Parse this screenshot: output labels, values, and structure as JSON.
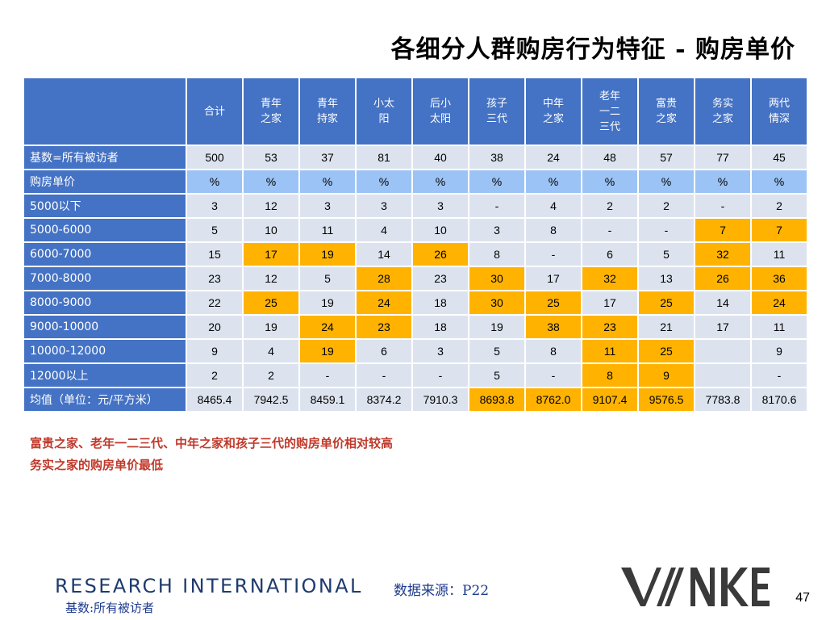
{
  "title": "各细分人群购房行为特征 - 购房单价",
  "table": {
    "headers": [
      "合计",
      "青年\n之家",
      "青年\n持家",
      "小太\n阳",
      "后小\n太阳",
      "孩子\n三代",
      "中年\n之家",
      "老年\n一二\n三代",
      "富贵\n之家",
      "务实\n之家",
      "两代\n情深"
    ],
    "rows": [
      {
        "label": "基数=所有被访者",
        "values": [
          "500",
          "53",
          "37",
          "81",
          "40",
          "38",
          "24",
          "48",
          "57",
          "77",
          "45"
        ],
        "highlight": [
          false,
          false,
          false,
          false,
          false,
          false,
          false,
          false,
          false,
          false,
          false
        ]
      },
      {
        "label": "购房单价",
        "values": [
          "%",
          "%",
          "%",
          "%",
          "%",
          "%",
          "%",
          "%",
          "%",
          "%",
          "%"
        ],
        "highlight": [
          false,
          false,
          false,
          false,
          false,
          false,
          false,
          false,
          false,
          false,
          false
        ],
        "pct": true
      },
      {
        "label": "5000以下",
        "values": [
          "3",
          "12",
          "3",
          "3",
          "3",
          "-",
          "4",
          "2",
          "2",
          "-",
          "2"
        ],
        "highlight": [
          false,
          false,
          false,
          false,
          false,
          false,
          false,
          false,
          false,
          false,
          false
        ]
      },
      {
        "label": "5000-6000",
        "values": [
          "5",
          "10",
          "11",
          "4",
          "10",
          "3",
          "8",
          "-",
          "-",
          "7",
          "7"
        ],
        "highlight": [
          false,
          false,
          false,
          false,
          false,
          false,
          false,
          false,
          false,
          true,
          true
        ]
      },
      {
        "label": "6000-7000",
        "values": [
          "15",
          "17",
          "19",
          "14",
          "26",
          "8",
          "-",
          "6",
          "5",
          "32",
          "11"
        ],
        "highlight": [
          false,
          true,
          true,
          false,
          true,
          false,
          false,
          false,
          false,
          true,
          false
        ]
      },
      {
        "label": "7000-8000",
        "values": [
          "23",
          "12",
          "5",
          "28",
          "23",
          "30",
          "17",
          "32",
          "13",
          "26",
          "36"
        ],
        "highlight": [
          false,
          false,
          false,
          true,
          false,
          true,
          false,
          true,
          false,
          true,
          true
        ]
      },
      {
        "label": "8000-9000",
        "values": [
          "22",
          "25",
          "19",
          "24",
          "18",
          "30",
          "25",
          "17",
          "25",
          "14",
          "24"
        ],
        "highlight": [
          false,
          true,
          false,
          true,
          false,
          true,
          true,
          false,
          true,
          false,
          true
        ]
      },
      {
        "label": "9000-10000",
        "values": [
          "20",
          "19",
          "24",
          "23",
          "18",
          "19",
          "38",
          "23",
          "21",
          "17",
          "11"
        ],
        "highlight": [
          false,
          false,
          true,
          true,
          false,
          false,
          true,
          true,
          false,
          false,
          false
        ]
      },
      {
        "label": "10000-12000",
        "values": [
          "9",
          "4",
          "19",
          "6",
          "3",
          "5",
          "8",
          "11",
          "25",
          "",
          "9"
        ],
        "highlight": [
          false,
          false,
          true,
          false,
          false,
          false,
          false,
          true,
          true,
          false,
          false
        ]
      },
      {
        "label": "12000以上",
        "values": [
          "2",
          "2",
          "-",
          "-",
          "-",
          "5",
          "-",
          "8",
          "9",
          "",
          "-"
        ],
        "highlight": [
          false,
          false,
          false,
          false,
          false,
          false,
          false,
          true,
          true,
          false,
          false
        ]
      },
      {
        "label": "均值（单位：元/平方米）",
        "values": [
          "8465.4",
          "7942.5",
          "8459.1",
          "8374.2",
          "7910.3",
          "8693.8",
          "8762.0",
          "9107.4",
          "9576.5",
          "7783.8",
          "8170.6"
        ],
        "highlight": [
          false,
          false,
          false,
          false,
          false,
          true,
          true,
          true,
          true,
          false,
          false
        ]
      }
    ]
  },
  "notes": [
    "富贵之家、老年一二三代、中年之家和孩子三代的购房单价相对较高",
    "务实之家的购房单价最低"
  ],
  "footer": {
    "research_logo": "RESEARCH INTERNATIONAL",
    "base_note": "基数:所有被访者",
    "source": "数据来源：P22",
    "vanke_logo": "VANKE",
    "page_number": "47"
  },
  "colors": {
    "header_blue": "#4472c4",
    "cell_light": "#dde3ee",
    "pct_row": "#9cc3f5",
    "highlight": "#ffb300",
    "note_red": "#c0392b"
  }
}
